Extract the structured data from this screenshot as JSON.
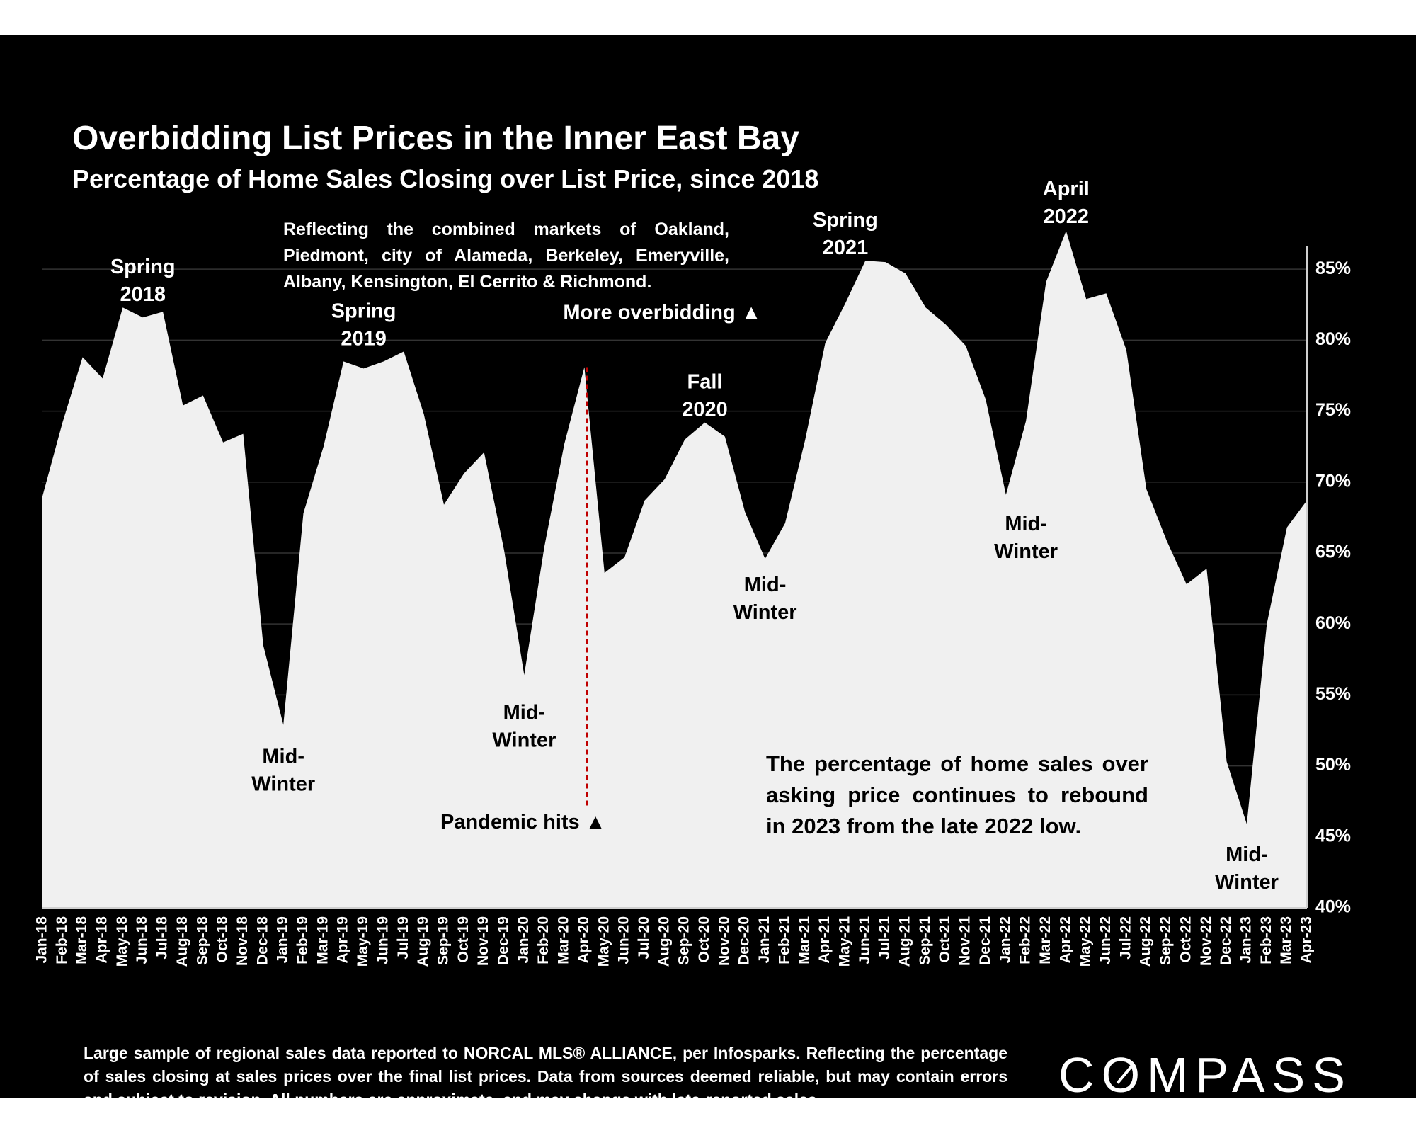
{
  "title": "Overbidding List Prices in the Inner East Bay",
  "subtitle": "Percentage of Home Sales Closing over List Price, since 2018",
  "note": "Reflecting the combined markets of Oakland, Piedmont, city of Alameda, Berkeley, Emeryville, Albany, Kensington, El Cerrito & Richmond.",
  "callout": "The percentage of home sales over asking price continues to rebound in 2023 from the late 2022 low.",
  "footer": "Large sample of regional sales data reported to NORCAL MLS® ALLIANCE, per Infosparks. Reflecting the percentage of sales closing at sales prices over the final list prices. Data from sources deemed reliable, but may contain errors and subject to revision. All numbers are approximate, and may change with late-reported sales.",
  "logo": "COMPASS",
  "colors": {
    "background": "#000000",
    "area_fill": "#f0f0f0",
    "pandemic_line": "#c00000",
    "text": "#ffffff"
  },
  "chart_data": {
    "type": "area",
    "x": [
      "Jan-18",
      "Feb-18",
      "Mar-18",
      "Apr-18",
      "May-18",
      "Jun-18",
      "Jul-18",
      "Aug-18",
      "Sep-18",
      "Oct-18",
      "Nov-18",
      "Dec-18",
      "Jan-19",
      "Feb-19",
      "Mar-19",
      "Apr-19",
      "May-19",
      "Jun-19",
      "Jul-19",
      "Aug-19",
      "Sep-19",
      "Oct-19",
      "Nov-19",
      "Dec-19",
      "Jan-20",
      "Feb-20",
      "Mar-20",
      "Apr-20",
      "May-20",
      "Jun-20",
      "Jul-20",
      "Aug-20",
      "Sep-20",
      "Oct-20",
      "Nov-20",
      "Dec-20",
      "Jan-21",
      "Feb-21",
      "Mar-21",
      "Apr-21",
      "May-21",
      "Jun-21",
      "Jul-21",
      "Aug-21",
      "Sep-21",
      "Oct-21",
      "Nov-21",
      "Dec-21",
      "Jan-22",
      "Feb-22",
      "Mar-22",
      "Apr-22",
      "May-22",
      "Jun-22",
      "Jul-22",
      "Aug-22",
      "Sep-22",
      "Oct-22",
      "Nov-22",
      "Dec-22",
      "Jan-23",
      "Feb-23",
      "Mar-23",
      "Apr-23"
    ],
    "values": [
      69.0,
      74.2,
      78.8,
      77.3,
      82.3,
      81.6,
      82.0,
      75.4,
      76.1,
      72.8,
      73.4,
      58.5,
      52.9,
      67.8,
      72.5,
      78.5,
      78.0,
      78.5,
      79.2,
      74.8,
      68.4,
      70.6,
      72.1,
      65.2,
      56.4,
      65.4,
      72.7,
      78.1,
      63.6,
      64.7,
      68.7,
      70.2,
      73.0,
      74.2,
      73.2,
      67.9,
      64.6,
      67.1,
      73.0,
      79.8,
      82.6,
      85.6,
      85.5,
      84.7,
      82.3,
      81.1,
      79.6,
      75.8,
      69.1,
      74.3,
      84.1,
      87.7,
      82.9,
      83.3,
      79.3,
      69.5,
      65.9,
      62.8,
      63.9,
      50.3,
      45.9,
      60.0,
      66.8,
      68.7
    ],
    "y_ticks": [
      "85%",
      "80%",
      "75%",
      "70%",
      "65%",
      "60%",
      "55%",
      "50%",
      "45%",
      "40%"
    ],
    "y_tick_values": [
      85,
      80,
      75,
      70,
      65,
      60,
      55,
      50,
      45,
      40
    ],
    "ylim": [
      40,
      89
    ],
    "y_axis_side": "right",
    "grid": true,
    "annotations": [
      {
        "text": "Spring\n2018",
        "x": "Jun-18",
        "y": 84.7,
        "color": "#ffffff"
      },
      {
        "text": "Spring\n2019",
        "x": "May-19",
        "y": 81.6,
        "color": "#ffffff"
      },
      {
        "text": "Fall\n2020",
        "x": "Oct-20",
        "y": 76.6,
        "color": "#ffffff"
      },
      {
        "text": "Spring\n2021",
        "x": "May-21",
        "y": 88.0,
        "color": "#ffffff"
      },
      {
        "text": "April\n2022",
        "x": "Apr-22",
        "y": 90.2,
        "color": "#ffffff"
      },
      {
        "text": "Mid-\nWinter",
        "x": "Jan-19",
        "y": 50.2,
        "color": "#000000"
      },
      {
        "text": "Mid-\nWinter",
        "x": "Jan-20",
        "y": 53.3,
        "color": "#000000"
      },
      {
        "text": "Mid-\nWinter",
        "x": "Jan-21",
        "y": 62.3,
        "color": "#000000"
      },
      {
        "text": "Mid-\nWinter",
        "x": "Feb-22",
        "y": 66.6,
        "color": "#000000"
      },
      {
        "text": "Mid-\nWinter",
        "x": "Jan-23",
        "y": 43.3,
        "color": "#000000"
      }
    ],
    "markers": [
      {
        "text": "More overbidding ▲",
        "x": "Apr-20",
        "y": 81.5,
        "color": "#ffffff"
      },
      {
        "text": "Pandemic hits ▲",
        "x": "Apr-20",
        "y": 45.6,
        "color": "#000000"
      }
    ],
    "event_line": {
      "x": "Apr-20",
      "from": 78.1,
      "to": 47.2,
      "color": "#c00000",
      "style": "dashed"
    }
  }
}
